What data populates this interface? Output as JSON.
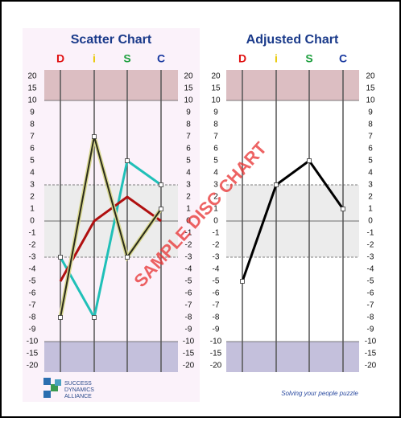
{
  "chart_data": [
    {
      "type": "line",
      "title": "Scatter Chart",
      "categories": [
        "D",
        "i",
        "S",
        "C"
      ],
      "category_colors": [
        "#e01010",
        "#e8c800",
        "#20a040",
        "#1a3aa0"
      ],
      "background": "#fbf2fa",
      "series": [
        {
          "color": "#20c0b8",
          "markers": true,
          "values": [
            -3,
            -8,
            5,
            3
          ]
        },
        {
          "color": "#b01010",
          "markers": false,
          "values": [
            -5,
            0,
            2,
            0
          ]
        },
        {
          "color": "#2b2b1a",
          "outline": "#d8d890",
          "markers": true,
          "values": [
            -8,
            7,
            -3,
            1
          ]
        }
      ],
      "ylim": [
        -20,
        20
      ],
      "yticks": [
        20,
        15,
        10,
        9,
        8,
        7,
        6,
        5,
        4,
        3,
        2,
        1,
        0,
        -1,
        -2,
        -3,
        -4,
        -5,
        -6,
        -7,
        -8,
        -9,
        -10,
        -15,
        -20
      ],
      "bands": [
        {
          "from": 10,
          "to": 20,
          "color": "#dcbec2"
        },
        {
          "from": -3,
          "to": 3,
          "color": "#ececec"
        },
        {
          "from": -20,
          "to": -10,
          "color": "#c4c0dc"
        }
      ]
    },
    {
      "type": "line",
      "title": "Adjusted Chart",
      "categories": [
        "D",
        "i",
        "S",
        "C"
      ],
      "category_colors": [
        "#e01010",
        "#e8c800",
        "#20a040",
        "#1a3aa0"
      ],
      "background": "#ffffff",
      "series": [
        {
          "color": "#000000",
          "markers": true,
          "values": [
            -5,
            3,
            5,
            1
          ]
        }
      ],
      "ylim": [
        -20,
        20
      ],
      "yticks": [
        20,
        15,
        10,
        9,
        8,
        7,
        6,
        5,
        4,
        3,
        2,
        1,
        0,
        -1,
        -2,
        -3,
        -4,
        -5,
        -6,
        -7,
        -8,
        -9,
        -10,
        -15,
        -20
      ],
      "bands": [
        {
          "from": 10,
          "to": 20,
          "color": "#dcbec2"
        },
        {
          "from": -3,
          "to": 3,
          "color": "#ececec"
        },
        {
          "from": -20,
          "to": -10,
          "color": "#c4c0dc"
        }
      ]
    }
  ],
  "watermark": "SAMPLE DISC CHART",
  "logo_text": [
    "SUCCESS",
    "DYNAMICS",
    "ALLIANCE"
  ],
  "tagline": "Solving your people puzzle"
}
